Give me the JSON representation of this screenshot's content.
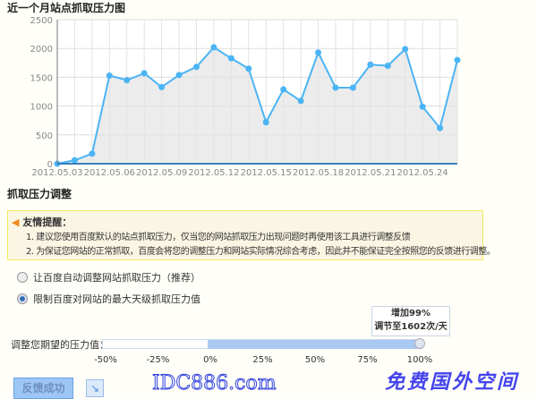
{
  "chart_data": {
    "type": "area",
    "title": "近一个月站点抓取压力图",
    "x": [
      "2012.05.03",
      "2012.05.04",
      "2012.05.05",
      "2012.05.06",
      "2012.05.07",
      "2012.05.08",
      "2012.05.09",
      "2012.05.10",
      "2012.05.11",
      "2012.05.12",
      "2012.05.13",
      "2012.05.14",
      "2012.05.15",
      "2012.05.16",
      "2012.05.17",
      "2012.05.18",
      "2012.05.19",
      "2012.05.20",
      "2012.05.21",
      "2012.05.22",
      "2012.05.23",
      "2012.05.24",
      "2012.05.25",
      "2012.05.26"
    ],
    "values": [
      0,
      60,
      175,
      1530,
      1450,
      1570,
      1330,
      1540,
      1680,
      2020,
      1830,
      1650,
      720,
      1290,
      1090,
      1930,
      1320,
      1320,
      1720,
      1700,
      1990,
      990,
      620,
      1800
    ],
    "x_tick_labels": [
      "2012.05.03",
      "2012.05.06",
      "2012.05.09",
      "2012.05.12",
      "2012.05.15",
      "2012.05.18",
      "2012.05.21",
      "2012.05.24"
    ],
    "y_tick_labels": [
      "0",
      "500",
      "1000",
      "1500",
      "2000",
      "2500"
    ],
    "ylim": [
      0,
      2500
    ],
    "grid": true,
    "line_color": "#4ab4f5",
    "fill_color": "#e4e4e4"
  },
  "section_title": "抓取压力调整",
  "notice": {
    "title": "友情提醒：",
    "lines": [
      "1. 建议您使用百度默认的站点抓取压力，仅当您的网站抓取压力出现问题时再使用该工具进行调整反馈",
      "2. 为保证您网站的正常抓取，百度会将您的调整压力和网站实际情况综合考虑，因此并不能保证完全按照您的反馈进行调整。"
    ]
  },
  "options": [
    {
      "label": "让百度自动调整网站抓取压力（推荐）",
      "selected": false
    },
    {
      "label": "限制百度对网站的最大天级抓取压力值",
      "selected": true
    }
  ],
  "tooltip": {
    "line1": "增加99%",
    "line2": "调节至1602次/天"
  },
  "slider": {
    "label": "调整您期望的压力值：",
    "value_percent": 99,
    "ticks": [
      "-50%",
      "-25%",
      "0%",
      "25%",
      "50%",
      "75%",
      "100%"
    ]
  },
  "submit_label": "反馈成功",
  "watermark": {
    "line1": "IDC886.com",
    "line2": "免费国外空间"
  }
}
